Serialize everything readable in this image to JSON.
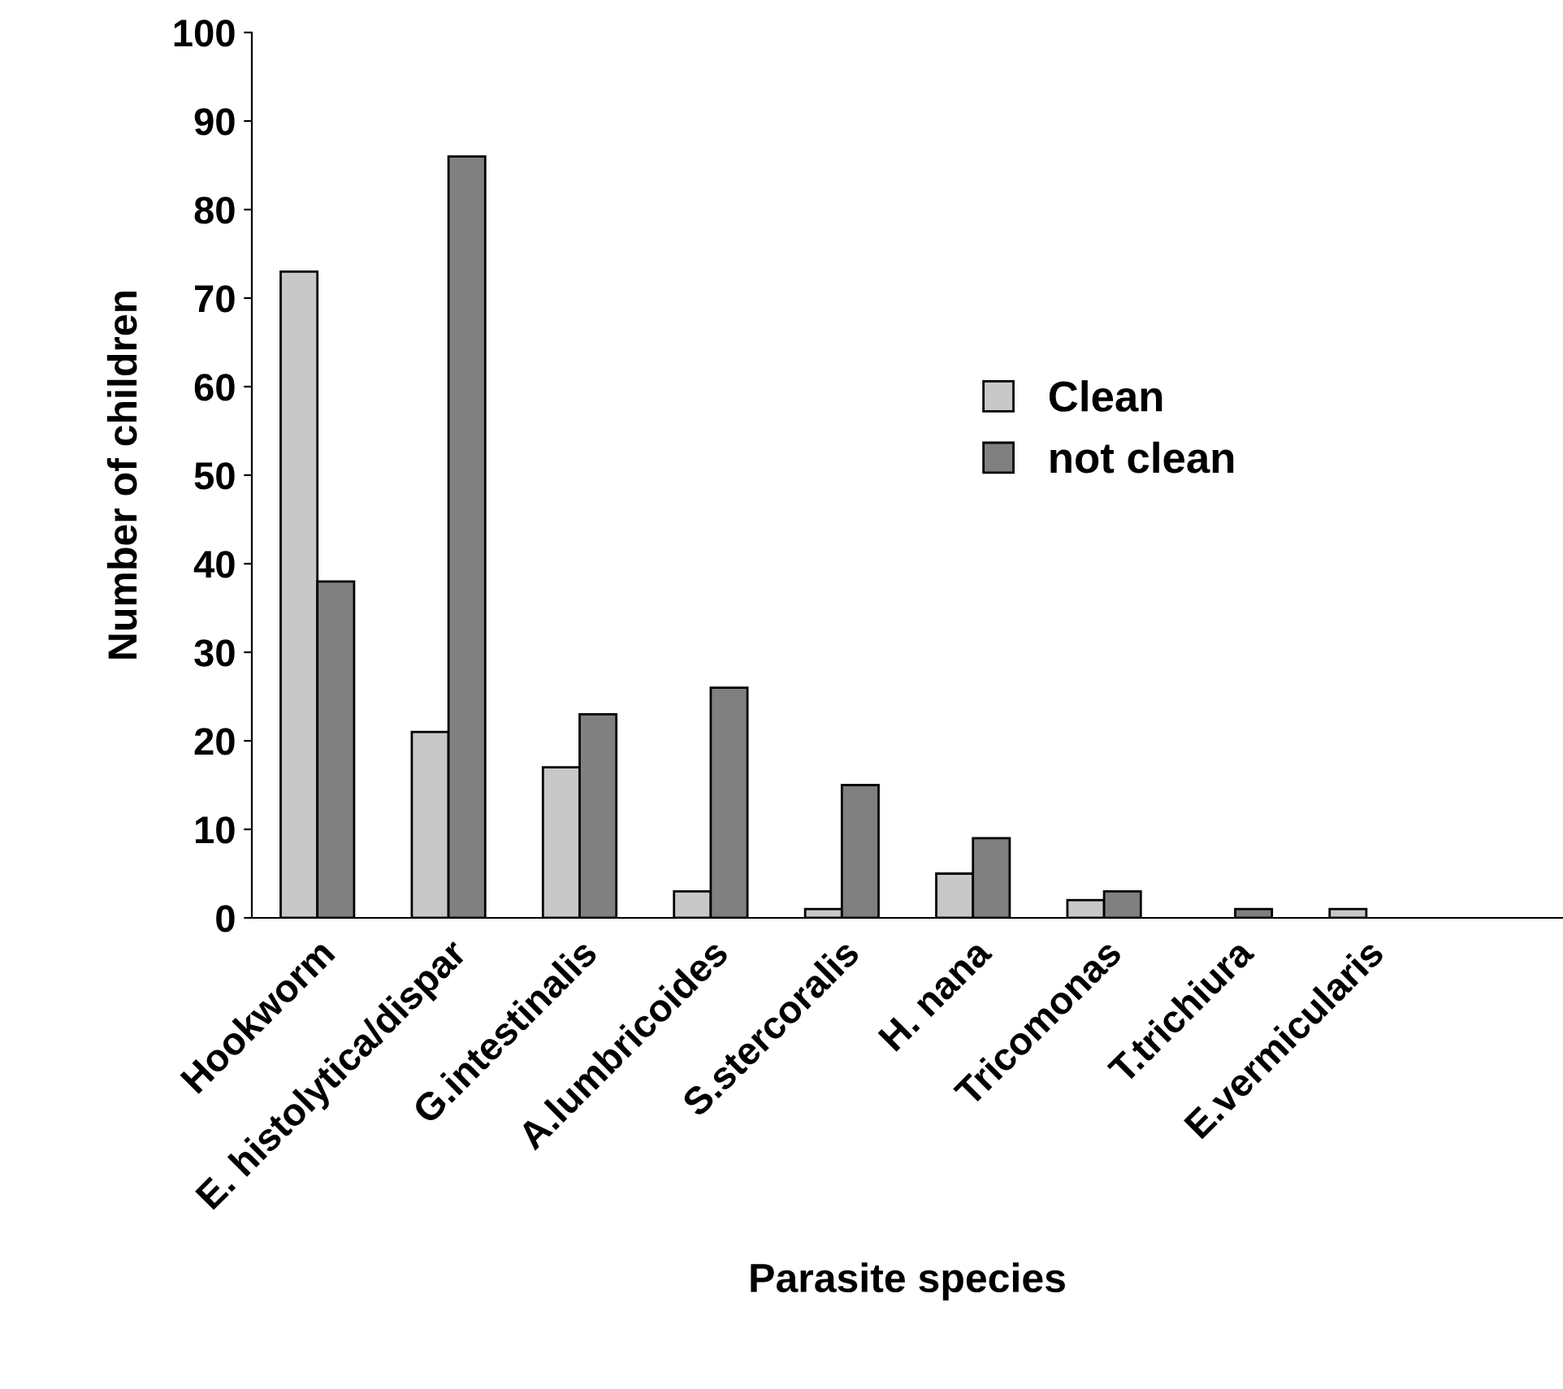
{
  "chart_data": {
    "type": "bar",
    "xlabel": "Parasite species",
    "ylabel": "Number of children",
    "categories": [
      "Hookworm",
      "E. histolytica/dispar",
      "G.intestinalis",
      "A.lumbricoides",
      "S.stercoralis",
      "H. nana",
      "Tricomonas",
      "T.trichiura",
      "E.vermicularis",
      null
    ],
    "series": [
      {
        "name": "Clean",
        "color": "#c8c8c8",
        "values": [
          73,
          21,
          17,
          3,
          1,
          5,
          2,
          0,
          1,
          null
        ]
      },
      {
        "name": "not clean",
        "color": "#808080",
        "values": [
          38,
          86,
          23,
          26,
          15,
          9,
          3,
          1,
          0,
          null
        ]
      }
    ],
    "ylim": [
      0,
      100
    ],
    "yticks": [
      0,
      10,
      20,
      30,
      40,
      50,
      60,
      70,
      80,
      90,
      100
    ],
    "grid": false,
    "legend": "right"
  }
}
